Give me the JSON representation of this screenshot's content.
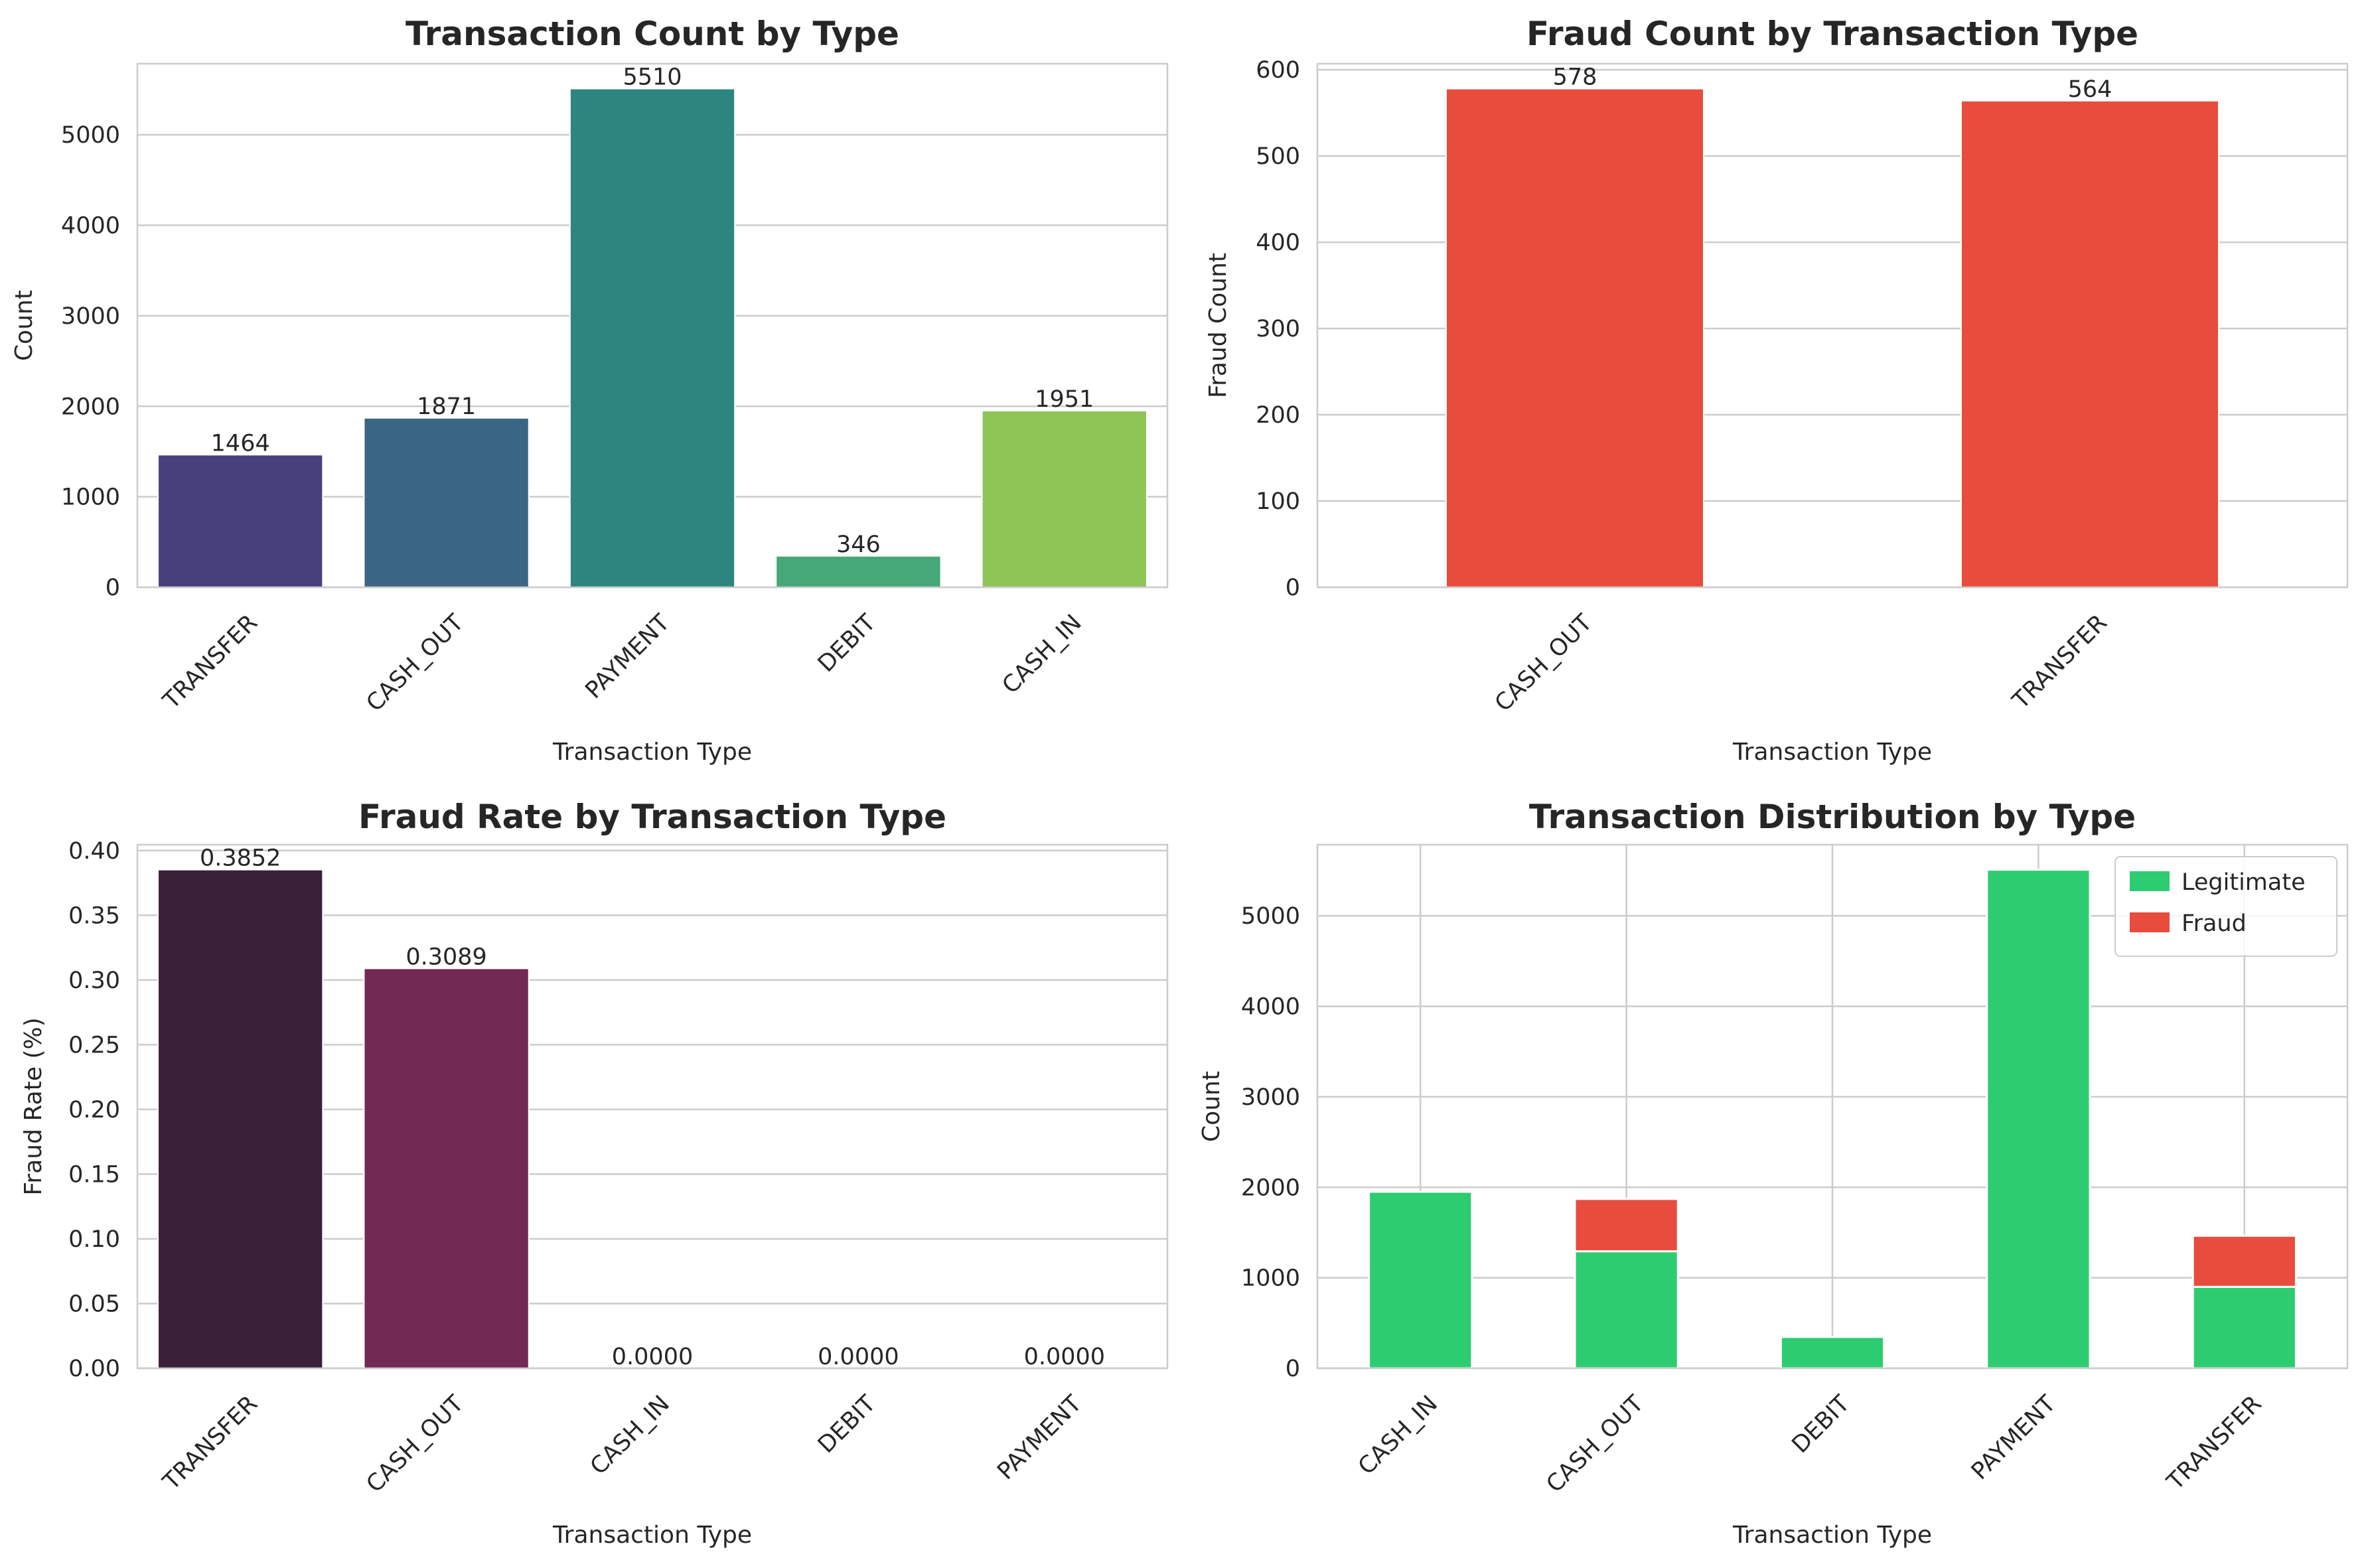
{
  "chart_data": [
    {
      "id": "c1",
      "type": "bar",
      "title": "Transaction Count by Type",
      "xlabel": "Transaction Type",
      "ylabel": "Count",
      "categories": [
        "TRANSFER",
        "CASH_OUT",
        "PAYMENT",
        "DEBIT",
        "CASH_IN"
      ],
      "values": [
        1464,
        1871,
        5510,
        346,
        1951
      ],
      "data_labels": [
        "1464",
        "1871",
        "5510",
        "346",
        "1951"
      ],
      "colors": [
        "#48407a",
        "#3b6683",
        "#2d857f",
        "#45a876",
        "#8fc457"
      ],
      "ylim": [
        0,
        5786
      ],
      "yticks": [
        0,
        1000,
        2000,
        3000,
        4000,
        5000
      ],
      "ytick_labels": [
        "0",
        "1000",
        "2000",
        "3000",
        "4000",
        "5000"
      ],
      "grid": "horizontal"
    },
    {
      "id": "c2",
      "type": "bar",
      "title": "Fraud Count by Transaction Type",
      "xlabel": "Transaction Type",
      "ylabel": "Fraud Count",
      "categories": [
        "CASH_OUT",
        "TRANSFER"
      ],
      "values": [
        578,
        564
      ],
      "data_labels": [
        "578",
        "564"
      ],
      "colors": [
        "#e74c3c",
        "#e74c3c"
      ],
      "ylim": [
        0,
        607
      ],
      "yticks": [
        0,
        100,
        200,
        300,
        400,
        500,
        600
      ],
      "ytick_labels": [
        "0",
        "100",
        "200",
        "300",
        "400",
        "500",
        "600"
      ],
      "grid": "horizontal"
    },
    {
      "id": "c3",
      "type": "bar",
      "title": "Fraud Rate by Transaction Type",
      "xlabel": "Transaction Type",
      "ylabel": "Fraud Rate (%)",
      "categories": [
        "TRANSFER",
        "CASH_OUT",
        "CASH_IN",
        "DEBIT",
        "PAYMENT"
      ],
      "values": [
        0.3852,
        0.3089,
        0.0,
        0.0,
        0.0
      ],
      "data_labels": [
        "0.3852",
        "0.3089",
        "0.0000",
        "0.0000",
        "0.0000"
      ],
      "colors": [
        "#3a2038",
        "#722a55",
        "#a53e5a",
        "#d1594f",
        "#ea7f5d"
      ],
      "ylim": [
        0,
        0.4045
      ],
      "yticks": [
        0.0,
        0.05,
        0.1,
        0.15,
        0.2,
        0.25,
        0.3,
        0.35,
        0.4
      ],
      "ytick_labels": [
        "0.00",
        "0.05",
        "0.10",
        "0.15",
        "0.20",
        "0.25",
        "0.30",
        "0.35",
        "0.40"
      ],
      "grid": "horizontal"
    },
    {
      "id": "c4",
      "type": "bar",
      "stacked": true,
      "title": "Transaction Distribution by Type",
      "xlabel": "Transaction Type",
      "ylabel": "Count",
      "categories": [
        "CASH_IN",
        "CASH_OUT",
        "DEBIT",
        "PAYMENT",
        "TRANSFER"
      ],
      "series": [
        {
          "name": "Legitimate",
          "color": "#2ecc71",
          "values": [
            1951,
            1293,
            346,
            5510,
            900
          ]
        },
        {
          "name": "Fraud",
          "color": "#e74c3c",
          "values": [
            0,
            578,
            0,
            0,
            564
          ]
        }
      ],
      "ylim": [
        0,
        5786
      ],
      "yticks": [
        0,
        1000,
        2000,
        3000,
        4000,
        5000
      ],
      "ytick_labels": [
        "0",
        "1000",
        "2000",
        "3000",
        "4000",
        "5000"
      ],
      "grid": "both",
      "legend_position": "top-right"
    }
  ]
}
